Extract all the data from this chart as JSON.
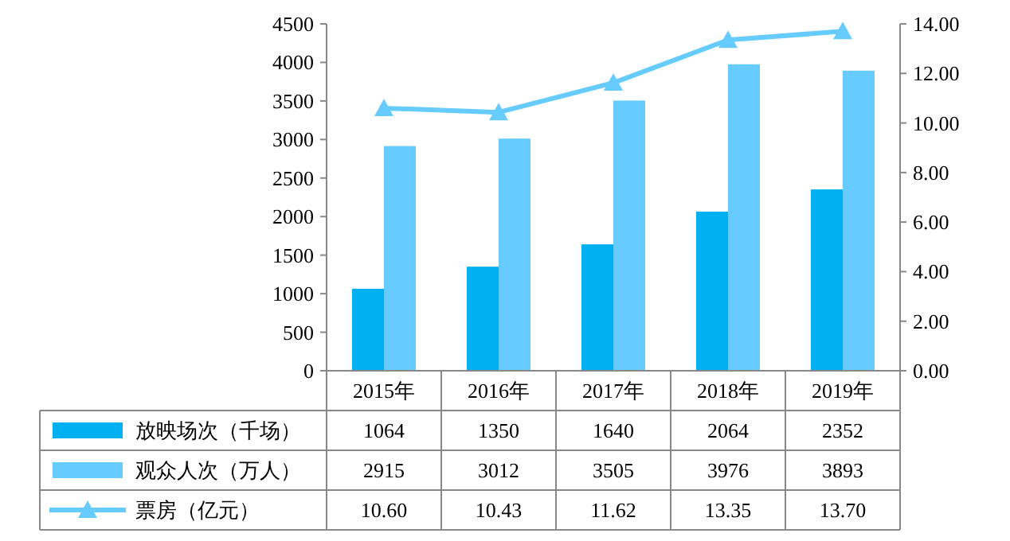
{
  "chart_data": {
    "type": "bar",
    "categories": [
      "2015年",
      "2016年",
      "2017年",
      "2018年",
      "2019年"
    ],
    "series": [
      {
        "name": "放映场次（千场）",
        "color": "#00b0f0",
        "values": [
          1064,
          1350,
          1640,
          2064,
          2352
        ],
        "value_labels": [
          "1064",
          "1350",
          "1640",
          "2064",
          "2352"
        ]
      },
      {
        "name": "观众人次（万人）",
        "color": "#66ccff",
        "values": [
          2915,
          3012,
          3505,
          3976,
          3893
        ],
        "value_labels": [
          "2915",
          "3012",
          "3505",
          "3976",
          "3893"
        ]
      },
      {
        "name": "票房（亿元）",
        "type": "line",
        "axis": "y2",
        "color": "#66ccff",
        "marker": "triangle",
        "values": [
          10.6,
          10.43,
          11.62,
          13.35,
          13.7
        ],
        "value_labels": [
          "10.60",
          "10.43",
          "11.62",
          "13.35",
          "13.70"
        ]
      }
    ],
    "ylim": [
      0,
      4500
    ],
    "yticks": [
      0,
      500,
      1000,
      1500,
      2000,
      2500,
      3000,
      3500,
      4000,
      4500
    ],
    "y2lim": [
      0,
      14
    ],
    "y2ticks": [
      {
        "value": 0,
        "label": "0.00"
      },
      {
        "value": 2,
        "label": "2.00"
      },
      {
        "value": 4,
        "label": "4.00"
      },
      {
        "value": 6,
        "label": "6.00"
      },
      {
        "value": 8,
        "label": "8.00"
      },
      {
        "value": 10,
        "label": "10.00"
      },
      {
        "value": 12,
        "label": "12.00"
      },
      {
        "value": 14,
        "label": "14.00"
      }
    ],
    "legend": "bottom"
  }
}
